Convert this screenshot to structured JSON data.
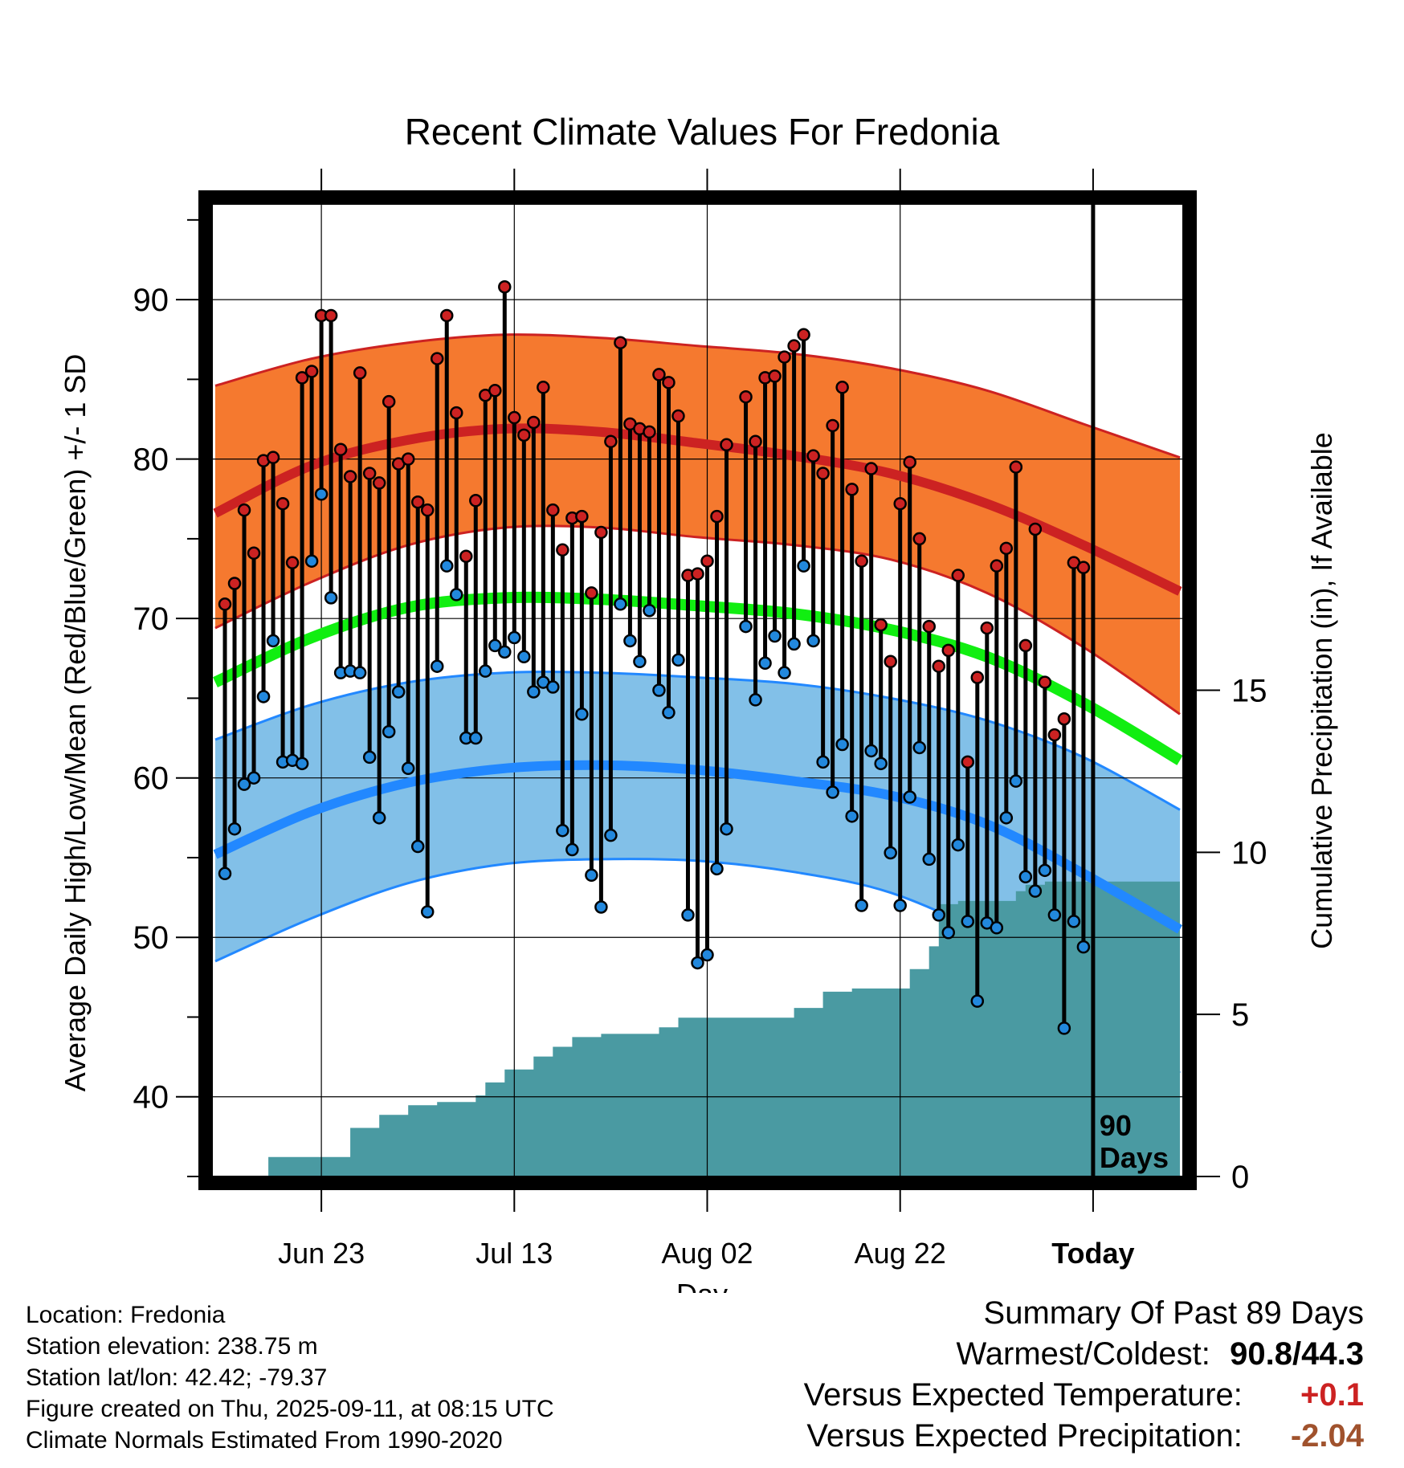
{
  "chart_data": {
    "type": "line",
    "title": "Recent Climate Values For Fredonia",
    "xlabel": "Day",
    "ylabel": "Average Daily High/Low/Mean (Red/Blue/Green) +/- 1 SD",
    "y2label": "Cumulative Precipitation (in), If Available",
    "ylim": [
      35,
      96
    ],
    "y2lim": [
      0,
      30
    ],
    "yticks": [
      "40",
      "50",
      "60",
      "70",
      "80",
      "90"
    ],
    "y2ticks": [
      "0",
      "5",
      "10",
      "15"
    ],
    "xtick_labels": [
      "Jun 23",
      "Jul 13",
      "Aug 02",
      "Aug 22",
      "Today"
    ],
    "xtick_days": [
      11,
      31,
      51,
      71,
      91
    ],
    "day_range": [
      0,
      100
    ],
    "today_marker": {
      "day": 91,
      "label_line1": "90",
      "label_line2": "Days"
    },
    "grid": true,
    "normals": {
      "days": [
        0,
        10,
        20,
        30,
        40,
        50,
        60,
        70,
        80,
        90,
        100
      ],
      "high_mean": [
        76.6,
        79.6,
        81.2,
        81.9,
        81.7,
        81.0,
        80.2,
        79.1,
        77.2,
        74.6,
        71.7
      ],
      "high_upper": [
        84.6,
        86.3,
        87.3,
        87.8,
        87.6,
        87.1,
        86.6,
        85.7,
        84.3,
        82.2,
        80.1
      ],
      "high_lower": [
        69.4,
        72.3,
        74.6,
        75.7,
        75.7,
        75.1,
        74.6,
        73.7,
        71.6,
        68.2,
        64.0
      ],
      "mean_mean": [
        66.0,
        68.8,
        70.7,
        71.3,
        71.2,
        70.8,
        70.3,
        69.3,
        67.6,
        64.7,
        61.1
      ],
      "low_mean": [
        55.2,
        57.9,
        59.7,
        60.6,
        60.8,
        60.5,
        59.8,
        58.9,
        57.1,
        54.0,
        50.5
      ],
      "low_upper": [
        62.4,
        64.6,
        66.0,
        66.6,
        66.6,
        66.3,
        65.9,
        65.0,
        63.6,
        61.3,
        58.0
      ],
      "low_lower": [
        48.5,
        51.2,
        53.4,
        54.6,
        54.9,
        54.8,
        54.1,
        52.8,
        50.1,
        46.2,
        41.5
      ]
    },
    "series": [
      {
        "name": "Daily High",
        "color": "#cc2222",
        "values": [
          70.9,
          72.2,
          76.8,
          74.1,
          79.9,
          80.1,
          77.2,
          73.5,
          85.1,
          85.5,
          89.0,
          89.0,
          80.6,
          78.9,
          85.4,
          79.1,
          78.5,
          83.6,
          79.7,
          80.0,
          77.3,
          76.8,
          86.3,
          89.0,
          82.9,
          73.9,
          77.4,
          84.0,
          84.3,
          90.8,
          82.6,
          81.5,
          82.3,
          84.5,
          76.8,
          74.3,
          76.3,
          76.4,
          71.6,
          75.4,
          81.1,
          87.3,
          82.2,
          81.9,
          81.7,
          85.3,
          84.8,
          82.7,
          72.7,
          72.8,
          73.6,
          76.4,
          80.9,
          null,
          83.9,
          81.1,
          85.1,
          85.2,
          86.4,
          87.1,
          87.8,
          80.2,
          79.1,
          82.1,
          84.5,
          78.1,
          73.6,
          79.4,
          69.6,
          67.3,
          77.2,
          79.8,
          75.0,
          69.5,
          67.0,
          68.0,
          72.7,
          61.0,
          66.3,
          69.4,
          73.3,
          74.4,
          79.5,
          68.3,
          75.6,
          66.0,
          62.7,
          63.7,
          73.5,
          73.2
        ]
      },
      {
        "name": "Daily Low",
        "color": "#2288dd",
        "values": [
          54.0,
          56.8,
          59.6,
          60.0,
          65.1,
          68.6,
          61.0,
          61.1,
          60.9,
          73.6,
          77.8,
          71.3,
          66.6,
          66.7,
          66.6,
          61.3,
          57.5,
          62.9,
          65.4,
          60.6,
          55.7,
          51.6,
          67.0,
          73.3,
          71.5,
          62.5,
          62.5,
          66.7,
          68.3,
          67.9,
          68.8,
          67.6,
          65.4,
          66.0,
          65.7,
          56.7,
          55.5,
          64.0,
          53.9,
          51.9,
          56.4,
          70.9,
          68.6,
          67.3,
          70.5,
          65.5,
          64.1,
          67.4,
          51.4,
          48.4,
          48.9,
          54.3,
          56.8,
          null,
          69.5,
          64.9,
          67.2,
          68.9,
          66.6,
          68.4,
          73.3,
          68.6,
          61.0,
          59.1,
          62.1,
          57.6,
          52.0,
          61.7,
          60.9,
          55.3,
          52.0,
          58.8,
          61.9,
          54.9,
          51.4,
          50.3,
          55.8,
          51.0,
          46.0,
          50.9,
          50.6,
          57.5,
          59.8,
          53.8,
          52.9,
          54.2,
          51.4,
          44.3,
          51.0,
          49.4
        ]
      }
    ],
    "precipitation": {
      "name": "Cumulative Precipitation",
      "color": "#4a9aa2",
      "x": [
        0,
        5.5,
        5.5,
        14,
        14,
        17,
        17,
        20,
        20,
        23,
        23,
        27,
        27,
        28,
        28,
        30,
        30,
        33,
        33,
        35,
        35,
        37,
        37,
        40,
        40,
        46,
        46,
        48,
        48,
        60,
        60,
        63,
        63,
        66,
        66,
        72,
        72,
        74,
        74,
        75,
        75,
        77,
        77,
        83,
        83,
        84,
        84,
        86,
        86,
        100
      ],
      "y": [
        0,
        0,
        0.6,
        0.6,
        1.5,
        1.5,
        1.9,
        1.9,
        2.2,
        2.2,
        2.3,
        2.3,
        2.5,
        2.5,
        2.9,
        2.9,
        3.3,
        3.3,
        3.7,
        3.7,
        4.0,
        4.0,
        4.3,
        4.3,
        4.4,
        4.4,
        4.6,
        4.6,
        4.9,
        4.9,
        5.2,
        5.2,
        5.7,
        5.7,
        5.8,
        5.8,
        6.4,
        6.4,
        7.1,
        7.1,
        8.4,
        8.4,
        8.5,
        8.5,
        8.8,
        8.8,
        9.0,
        9.0,
        9.1,
        9.1
      ]
    }
  },
  "colors": {
    "high_band": "#f5792f",
    "high_line": "#cc2222",
    "low_band": "#82c0e8",
    "low_line": "#2288ff",
    "mean_line": "#11ee11",
    "high_dot": "#cc2222",
    "low_dot": "#2288dd",
    "positive": "#cc2222",
    "negative": "#a0522d"
  },
  "meta": {
    "location": "Location: Fredonia",
    "elevation": "Station elevation: 238.75 m",
    "latlon": "Station lat/lon: 42.42; -79.37",
    "created": "Figure created on Thu, 2025-09-11, at 08:15 UTC",
    "normals": "Climate Normals Estimated From 1990-2020"
  },
  "summary": {
    "heading": "Summary Of Past 89 Days",
    "warmest_coldest_label": "Warmest/Coldest:",
    "warmest_coldest_value": "90.8/44.3",
    "temp_label": "Versus Expected Temperature:",
    "temp_value": "+0.1",
    "precip_label": "Versus Expected Precipitation:",
    "precip_value": "-2.04"
  }
}
